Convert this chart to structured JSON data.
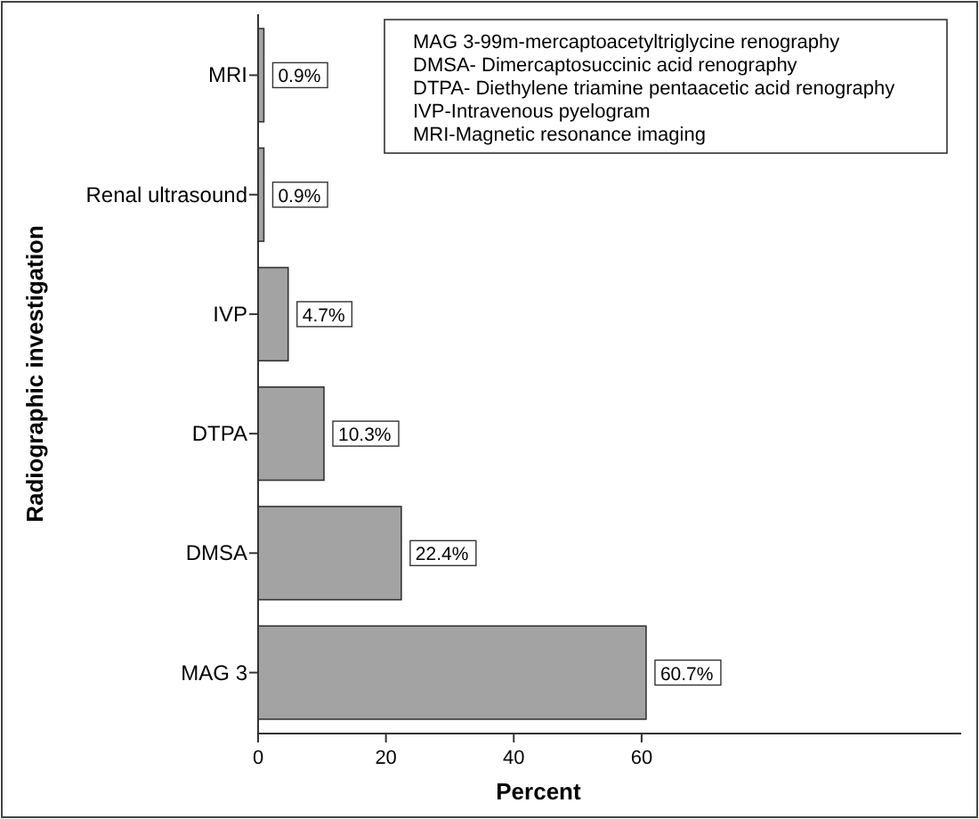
{
  "chart_data": {
    "type": "bar",
    "orientation": "horizontal",
    "xlabel": "Percent",
    "ylabel": "Radiographic investigation",
    "categories": [
      "MRI",
      "Renal ultrasound",
      "IVP",
      "DTPA",
      "DMSA",
      "MAG 3"
    ],
    "values": [
      0.9,
      0.9,
      4.7,
      10.3,
      22.4,
      60.7
    ],
    "value_labels": [
      "0.9%",
      "0.9%",
      "4.7%",
      "10.3%",
      "22.4%",
      "60.7%"
    ],
    "color": "#a3a3a3",
    "xlim": [
      0,
      110
    ],
    "xticks": [
      0,
      20,
      40,
      60
    ],
    "grid": false,
    "annotations": [
      "MAG 3-99m-mercaptoacetyltriglycine renography",
      "DMSA- Dimercaptosuccinic acid renography",
      "DTPA- Diethylene triamine pentaacetic acid renography",
      "IVP-Intravenous pyelogram",
      "MRI-Magnetic resonance imaging"
    ]
  }
}
